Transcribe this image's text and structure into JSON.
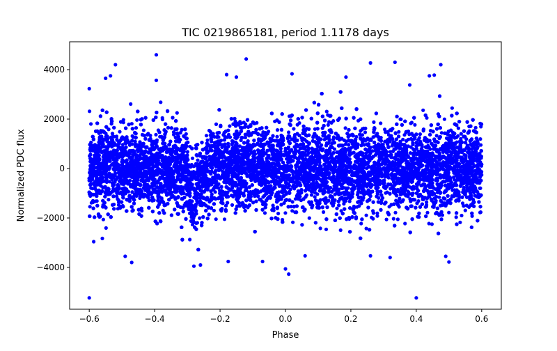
{
  "chart_data": {
    "type": "scatter",
    "title": "TIC 0219865181, period 1.1178 days",
    "xlabel": "Phase",
    "ylabel": "Normalized PDC flux",
    "xlim": [
      -0.66,
      0.66
    ],
    "ylim": [
      -5690,
      5127
    ],
    "xticks": [
      -0.6,
      -0.4,
      -0.2,
      0.0,
      0.2,
      0.4,
      0.6
    ],
    "xtick_labels": [
      "−0.6",
      "−0.4",
      "−0.2",
      "0.0",
      "0.2",
      "0.4",
      "0.6"
    ],
    "yticks": [
      4000,
      2000,
      0,
      -2000,
      -4000
    ],
    "ytick_labels": [
      "4000",
      "2000",
      "0",
      "−2000",
      "−4000"
    ],
    "grid": false,
    "marker_color": "#0000ff",
    "bulk_distribution": {
      "phase_range": [
        -0.6,
        0.6
      ],
      "n_points": 14000,
      "mean_flux": 0,
      "flux_std": 850,
      "dip": {
        "center_phase": -0.275,
        "half_width": 0.035,
        "depth": -1100
      }
    },
    "points": [
      [
        -0.395,
        4600
      ],
      [
        -0.12,
        4430
      ],
      [
        -0.52,
        4200
      ],
      [
        0.26,
        4270
      ],
      [
        0.335,
        4300
      ],
      [
        0.475,
        4200
      ],
      [
        -0.6,
        3230
      ],
      [
        -0.395,
        3570
      ],
      [
        0.02,
        3830
      ],
      [
        -0.18,
        3800
      ],
      [
        0.185,
        3700
      ],
      [
        -0.15,
        3700
      ],
      [
        -0.55,
        3650
      ],
      [
        -0.535,
        3750
      ],
      [
        0.44,
        3750
      ],
      [
        0.455,
        3780
      ],
      [
        0.38,
        3380
      ],
      [
        -0.6,
        -5230
      ],
      [
        0.4,
        -5230
      ],
      [
        0.0,
        -4060
      ],
      [
        0.01,
        -4270
      ],
      [
        -0.47,
        -3800
      ],
      [
        0.32,
        -3600
      ],
      [
        0.5,
        -3780
      ],
      [
        0.06,
        -3530
      ],
      [
        -0.07,
        -3760
      ],
      [
        0.26,
        -3530
      ],
      [
        -0.175,
        -3760
      ],
      [
        -0.28,
        -3950
      ],
      [
        -0.26,
        -3900
      ],
      [
        -0.49,
        -3550
      ],
      [
        0.49,
        -3550
      ]
    ]
  }
}
